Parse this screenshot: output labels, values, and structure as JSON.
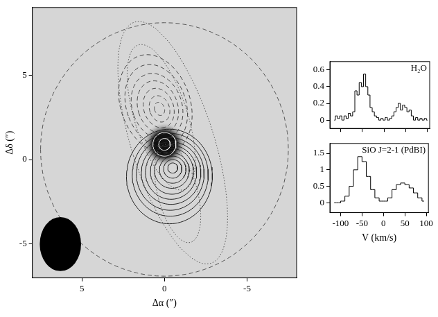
{
  "chart_data": [
    {
      "type": "contour_map",
      "xlabel": "Δα (″)",
      "ylabel": "Δδ (″)",
      "xlim": [
        8,
        -8
      ],
      "ylim": [
        -7,
        9
      ],
      "xticks": [
        5,
        0,
        -5
      ],
      "yticks": [
        -5,
        0,
        5
      ],
      "grid": false,
      "contours": [
        {
          "line_style": "dotted",
          "color": "#555555",
          "levels": [
            {
              "center": [
                -0.5,
                1.0
              ],
              "radii": [
                2.5,
                7.5
              ],
              "pa": 18
            },
            {
              "center": [
                0.2,
                2.5
              ],
              "radii": [
                1.6,
                4.5
              ],
              "pa": 18
            },
            {
              "center": [
                -0.8,
                -2.0
              ],
              "radii": [
                1.2,
                3.0
              ],
              "pa": 15
            }
          ]
        },
        {
          "line_style": "dashed",
          "color": "#555555",
          "levels": [
            {
              "center": [
                0.0,
                0.6
              ],
              "radii": [
                7.5,
                7.5
              ],
              "pa": 0
            }
          ]
        },
        {
          "line_style": "dashed",
          "color": "#444444",
          "levels": [
            {
              "center": [
                0.3,
                3.0
              ],
              "radii": [
                0.3,
                0.4
              ],
              "pa": 20
            },
            {
              "center": [
                0.3,
                3.0
              ],
              "radii": [
                0.6,
                0.8
              ],
              "pa": 20
            },
            {
              "center": [
                0.35,
                3.05
              ],
              "radii": [
                0.9,
                1.2
              ],
              "pa": 20
            },
            {
              "center": [
                0.4,
                3.1
              ],
              "radii": [
                1.2,
                1.6
              ],
              "pa": 20
            },
            {
              "center": [
                0.45,
                3.15
              ],
              "radii": [
                1.5,
                2.0
              ],
              "pa": 20
            },
            {
              "center": [
                0.5,
                3.2
              ],
              "radii": [
                1.8,
                2.5
              ],
              "pa": 20
            },
            {
              "center": [
                0.55,
                3.3
              ],
              "radii": [
                2.1,
                3.0
              ],
              "pa": 20
            }
          ]
        },
        {
          "line_style": "solid",
          "color": "#222222",
          "levels": [
            {
              "center": [
                -0.5,
                -0.5
              ],
              "radii": [
                0.3,
                0.3
              ],
              "pa": 0
            },
            {
              "center": [
                -0.5,
                -0.55
              ],
              "radii": [
                0.55,
                0.55
              ],
              "pa": 0
            },
            {
              "center": [
                -0.5,
                -0.6
              ],
              "radii": [
                0.8,
                0.8
              ],
              "pa": 0
            },
            {
              "center": [
                -0.45,
                -0.65
              ],
              "radii": [
                1.05,
                1.05
              ],
              "pa": 0
            },
            {
              "center": [
                -0.45,
                -0.7
              ],
              "radii": [
                1.3,
                1.35
              ],
              "pa": 0
            },
            {
              "center": [
                -0.4,
                -0.75
              ],
              "radii": [
                1.55,
                1.6
              ],
              "pa": 0
            },
            {
              "center": [
                -0.4,
                -0.8
              ],
              "radii": [
                1.8,
                1.85
              ],
              "pa": 0
            },
            {
              "center": [
                -0.35,
                -0.85
              ],
              "radii": [
                2.05,
                2.15
              ],
              "pa": 0
            },
            {
              "center": [
                -0.35,
                -0.9
              ],
              "radii": [
                2.3,
                2.45
              ],
              "pa": 0
            },
            {
              "center": [
                -0.3,
                -1.0
              ],
              "radii": [
                2.6,
                2.8
              ],
              "pa": 0
            }
          ]
        },
        {
          "line_style": "solid",
          "color": "#ffffff",
          "levels": [
            {
              "center": [
                0.0,
                0.9
              ],
              "radii": [
                0.35,
                0.35
              ],
              "pa": 0
            },
            {
              "center": [
                0.0,
                0.9
              ],
              "radii": [
                0.7,
                0.7
              ],
              "pa": 0
            }
          ]
        }
      ],
      "continuum": {
        "center": [
          0.0,
          0.9
        ],
        "color": "#111111"
      },
      "beam": {
        "center": [
          6.3,
          -5.0
        ],
        "radii": [
          1.25,
          1.6
        ],
        "color": "#000000"
      }
    },
    {
      "type": "line",
      "line_style": "step",
      "title": "H₂O",
      "color": "#000000",
      "grid": false,
      "tick_labels": "y",
      "x": [
        -115,
        -110,
        -105,
        -100,
        -95,
        -90,
        -85,
        -80,
        -75,
        -70,
        -65,
        -60,
        -55,
        -50,
        -45,
        -40,
        -35,
        -30,
        -25,
        -20,
        -15,
        -10,
        -5,
        0,
        5,
        10,
        15,
        20,
        25,
        30,
        35,
        40,
        45,
        50,
        55,
        60,
        65,
        70,
        75,
        80,
        85,
        90,
        95,
        100
      ],
      "values": [
        0,
        0.05,
        0.02,
        0.05,
        0,
        0.05,
        0.02,
        0.08,
        0.05,
        0.1,
        0.35,
        0.3,
        0.45,
        0.4,
        0.55,
        0.4,
        0.3,
        0.15,
        0.1,
        0.05,
        0.03,
        0,
        0.02,
        0,
        0.03,
        0,
        0.02,
        0.05,
        0.1,
        0.15,
        0.2,
        0.12,
        0.18,
        0.15,
        0.1,
        0.12,
        0.05,
        0,
        0.03,
        0,
        0.02,
        0,
        0.02,
        0
      ],
      "xlim": [
        -125,
        105
      ],
      "ylim": [
        -0.1,
        0.7
      ],
      "xticks": [
        -100,
        -50,
        0,
        50,
        100
      ],
      "yticks": [
        0,
        0.2,
        0.4,
        0.6
      ]
    },
    {
      "type": "line",
      "line_style": "step",
      "title": "SiO J=2-1 (PdBI)",
      "xlabel": "V (km/s)",
      "color": "#000000",
      "grid": false,
      "x": [
        -115,
        -105,
        -95,
        -85,
        -75,
        -65,
        -55,
        -45,
        -35,
        -25,
        -15,
        -5,
        5,
        15,
        25,
        35,
        45,
        55,
        65,
        75,
        85,
        95
      ],
      "values": [
        0,
        0,
        0.05,
        0.2,
        0.5,
        1.0,
        1.4,
        1.25,
        0.8,
        0.4,
        0.15,
        0.05,
        0.05,
        0.15,
        0.4,
        0.55,
        0.6,
        0.55,
        0.45,
        0.3,
        0.15,
        0.05
      ],
      "xlim": [
        -125,
        105
      ],
      "ylim": [
        -0.3,
        1.8
      ],
      "xticks": [
        -100,
        -50,
        0,
        50,
        100
      ],
      "yticks": [
        0,
        0.5,
        1,
        1.5
      ]
    }
  ]
}
